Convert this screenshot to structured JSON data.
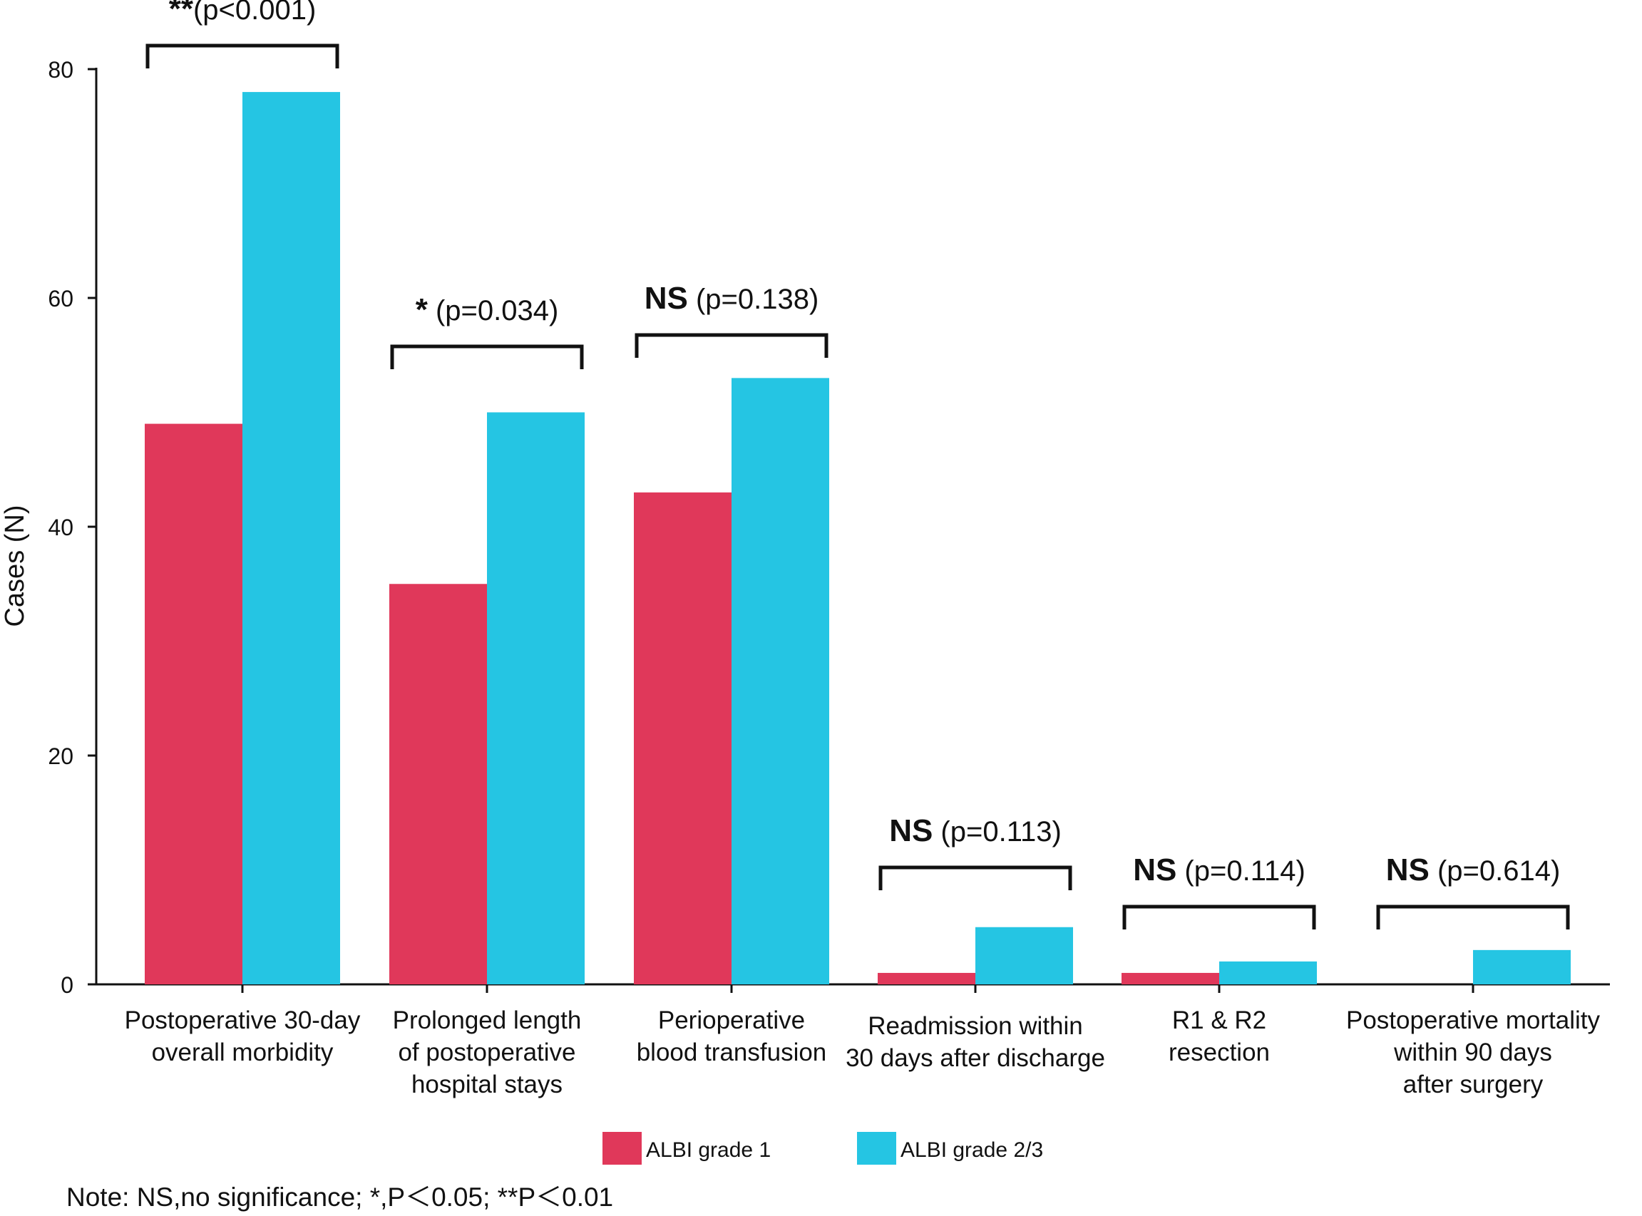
{
  "chart_data": {
    "type": "bar",
    "ylabel": "Cases (N)",
    "ylim": [
      0,
      80
    ],
    "yticks": [
      0,
      20,
      40,
      60,
      80
    ],
    "categories": [
      [
        "Postoperative 30-day",
        "overall morbidity"
      ],
      [
        "Prolonged length",
        "of postoperative",
        "hospital stays"
      ],
      [
        "Perioperative",
        "blood transfusion"
      ],
      [
        "Readmission within",
        "30 days after discharge"
      ],
      [
        "R1 & R2",
        "resection"
      ],
      [
        "Postoperative mortality",
        "within 90 days",
        "after surgery"
      ]
    ],
    "series": [
      {
        "name": "ALBI grade 1",
        "color": "#e0385a",
        "values": [
          49,
          35,
          43,
          1,
          1,
          0
        ]
      },
      {
        "name": "ALBI grade 2/3",
        "color": "#25c5e3",
        "values": [
          78,
          50,
          53,
          5,
          2,
          3
        ]
      }
    ],
    "significance": [
      {
        "mark": "**",
        "p_text": "(p<0.001)"
      },
      {
        "mark": "*",
        "p_text": " (p=0.034)"
      },
      {
        "mark": "NS",
        "p_text": " (p=0.138)"
      },
      {
        "mark": "NS",
        "p_text": " (p=0.113)"
      },
      {
        "mark": "NS",
        "p_text": " (p=0.114)"
      },
      {
        "mark": "NS",
        "p_text": " (p=0.614)"
      }
    ],
    "legend": [
      "ALBI grade 1",
      "ALBI grade 2/3"
    ],
    "note": "Note: NS,no significance; *,P＜0.05; **P＜0.01"
  }
}
